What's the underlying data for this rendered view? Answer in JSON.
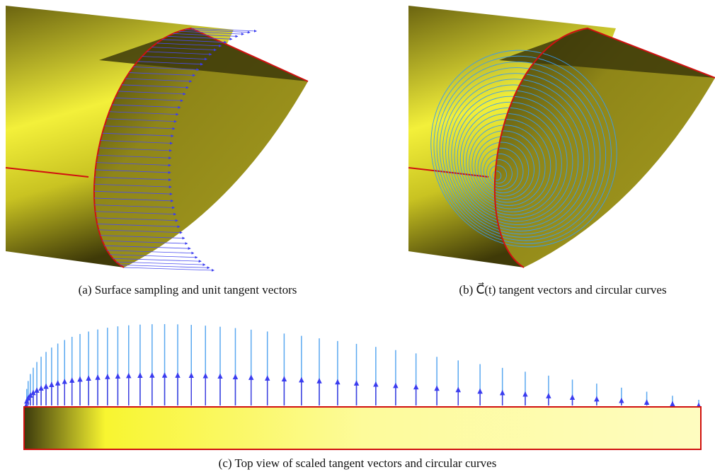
{
  "panels": [
    {
      "caption": "(a) Surface sampling and unit tangent vectors"
    },
    {
      "caption": "(b) C⃗(t) tangent vectors and circular curves"
    },
    {
      "caption": "(c) Top view of scaled tangent vectors and circular curves"
    }
  ]
}
